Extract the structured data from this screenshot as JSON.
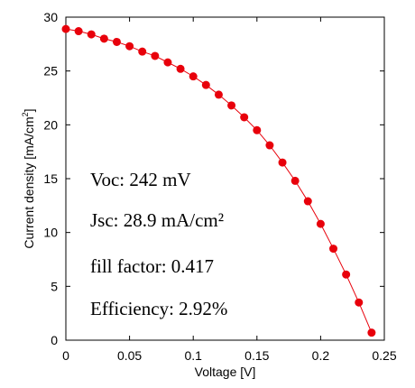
{
  "chart_data": {
    "type": "scatter",
    "title": "",
    "xlabel": "Voltage [V]",
    "ylabel_main": "Current density [mA/cm",
    "ylabel_sup": "2",
    "ylabel_end": "]",
    "xlim": [
      0,
      0.25
    ],
    "ylim": [
      0,
      30
    ],
    "grid": false,
    "legend": "none",
    "x_ticks": [
      "0",
      "0.05",
      "0.1",
      "0.15",
      "0.2",
      "0.25"
    ],
    "y_ticks": [
      "0",
      "5",
      "10",
      "15",
      "20",
      "25",
      "30"
    ],
    "series": [
      {
        "color": "#e8000b",
        "x": [
          0,
          0.01,
          0.02,
          0.03,
          0.04,
          0.05,
          0.06,
          0.07,
          0.08,
          0.09,
          0.1,
          0.11,
          0.12,
          0.13,
          0.14,
          0.15,
          0.16,
          0.17,
          0.18,
          0.19,
          0.2,
          0.21,
          0.22,
          0.23,
          0.24
        ],
        "y": [
          28.9,
          28.7,
          28.4,
          28.0,
          27.7,
          27.3,
          26.8,
          26.4,
          25.8,
          25.2,
          24.5,
          23.7,
          22.8,
          21.8,
          20.7,
          19.5,
          18.1,
          16.5,
          14.8,
          12.9,
          10.8,
          8.5,
          6.1,
          3.5,
          0.7
        ]
      }
    ],
    "annotations": [
      "Voc: 242 mV",
      "Jsc: 28.9 mA/cm²",
      "fill factor: 0.417",
      "Efficiency: 2.92%"
    ]
  }
}
